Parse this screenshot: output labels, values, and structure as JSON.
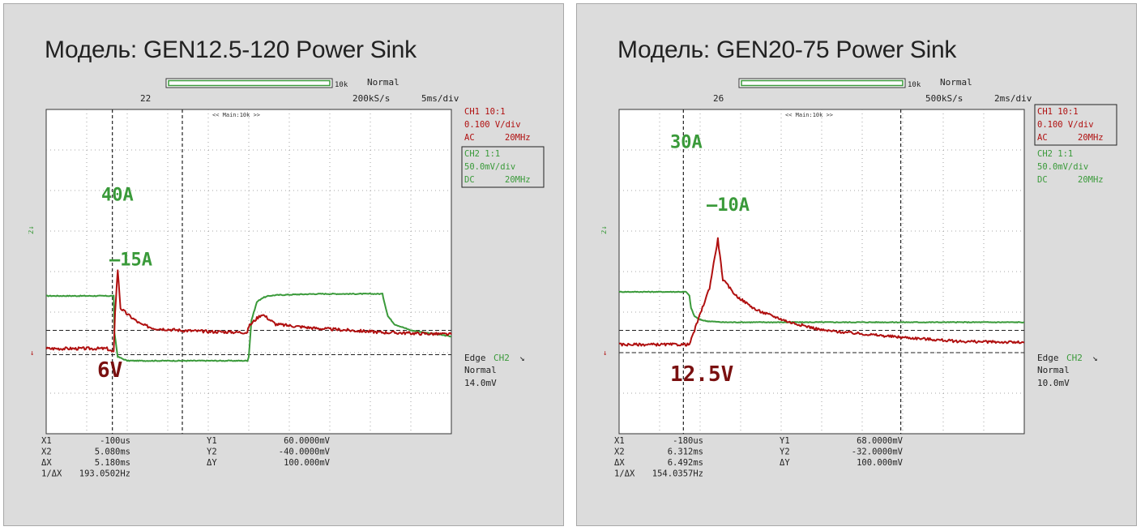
{
  "colors": {
    "ch1": "#b01010",
    "ch2": "#3a9a3a",
    "grid": "#8a8a8a",
    "screen": "#ffffff",
    "text": "#222222"
  },
  "panels": [
    {
      "title": "Модель: GEN12.5-120 Power Sink",
      "header": {
        "trigger_pos": "22",
        "record": "10k",
        "mode": "Normal",
        "sample_rate": "200kS/s",
        "timebase": "5ms/div",
        "main_label": "<< Main:10k >>"
      },
      "ch1": {
        "title": "CH1 10:1",
        "scale": "0.100 V/div",
        "coupling": "AC",
        "bw": "20MHz",
        "boxed": false
      },
      "ch2": {
        "title": "CH2 1:1",
        "scale": "50.0mV/div",
        "coupling": "DC",
        "bw": "20MHz",
        "boxed": true
      },
      "trigger": {
        "edge": "Edge",
        "source": "CH2",
        "slope": "↘",
        "mode": "Normal",
        "level": "14.0mV"
      },
      "cursors": [
        {
          "label": "X1",
          "value": "-100us",
          "ylabel": "Y1",
          "yvalue": "60.0000mV"
        },
        {
          "label": "X2",
          "value": "5.080ms",
          "ylabel": "Y2",
          "yvalue": "-40.0000mV"
        },
        {
          "label": "ΔX",
          "value": "5.180ms",
          "ylabel": "ΔY",
          "yvalue": "100.000mV"
        },
        {
          "label": "1/ΔX",
          "value": "193.0502Hz",
          "ylabel": "",
          "yvalue": ""
        }
      ],
      "annotations": {
        "current_high": "40A",
        "current_low": "–15A",
        "voltage": "6V"
      },
      "chart_data": {
        "type": "line",
        "title": "Модель: GEN12.5-120 Power Sink",
        "xlabel": "",
        "ylabel": "",
        "x_divisions": 10,
        "y_divisions": 8,
        "series": [
          {
            "name": "CH2",
            "x": [
              -5,
              0,
              0.05,
              0.3,
              1,
              3,
              6,
              9.9,
              10,
              10.2,
              10.6,
              11,
              11.5,
              12,
              15,
              19.9,
              20,
              20.3,
              20.8,
              22,
              25
            ],
            "y": [
              3.4,
              3.4,
              2.5,
              1.9,
              1.8,
              1.8,
              1.8,
              1.8,
              1.9,
              2.8,
              3.25,
              3.35,
              3.4,
              3.42,
              3.45,
              3.45,
              3.3,
              2.9,
              2.7,
              2.55,
              2.4
            ]
          },
          {
            "name": "CH1",
            "x": [
              -5,
              -0.5,
              0,
              0.1,
              0.3,
              0.5,
              1,
              2,
              3,
              5,
              7,
              9.9,
              10,
              10.3,
              10.6,
              11,
              12,
              15,
              20,
              25
            ],
            "y": [
              2.1,
              2.1,
              2.0,
              3.0,
              4.05,
              3.1,
              2.95,
              2.7,
              2.6,
              2.55,
              2.52,
              2.5,
              2.65,
              2.75,
              2.85,
              2.95,
              2.7,
              2.6,
              2.5,
              2.45
            ]
          }
        ]
      }
    },
    {
      "title": "Модель: GEN20-75 Power Sink",
      "header": {
        "trigger_pos": "26",
        "record": "10k",
        "mode": "Normal",
        "sample_rate": "500kS/s",
        "timebase": "2ms/div",
        "main_label": "<< Main:10k >>"
      },
      "ch1": {
        "title": "CH1 10:1",
        "scale": "0.100 V/div",
        "coupling": "AC",
        "bw": "20MHz",
        "boxed": true
      },
      "ch2": {
        "title": "CH2 1:1",
        "scale": "50.0mV/div",
        "coupling": "DC",
        "bw": "20MHz",
        "boxed": false
      },
      "trigger": {
        "edge": "Edge",
        "source": "CH2",
        "slope": "↘",
        "mode": "Normal",
        "level": "10.0mV"
      },
      "cursors": [
        {
          "label": "X1",
          "value": "-180us",
          "ylabel": "Y1",
          "yvalue": "68.0000mV"
        },
        {
          "label": "X2",
          "value": "6.312ms",
          "ylabel": "Y2",
          "yvalue": "-32.0000mV"
        },
        {
          "label": "ΔX",
          "value": "6.492ms",
          "ylabel": "ΔY",
          "yvalue": "100.000mV"
        },
        {
          "label": "1/ΔX",
          "value": "154.0357Hz",
          "ylabel": "",
          "yvalue": ""
        }
      ],
      "annotations": {
        "current_high": "30A",
        "current_low": "–10A",
        "voltage": "12.5V"
      },
      "chart_data": {
        "type": "line",
        "title": "Модель: GEN20-75 Power Sink",
        "xlabel": "",
        "ylabel": "",
        "x_divisions": 10,
        "y_divisions": 8,
        "series": [
          {
            "name": "CH2",
            "x": [
              -2.1,
              -0.1,
              0,
              0.05,
              0.15,
              0.3,
              0.5,
              1,
              2,
              5,
              8,
              10
            ],
            "y": [
              3.5,
              3.5,
              3.4,
              3.1,
              2.9,
              2.82,
              2.78,
              2.75,
              2.75,
              2.75,
              2.75,
              2.75
            ]
          },
          {
            "name": "CH1",
            "x": [
              -2.1,
              -0.2,
              0,
              0.3,
              0.6,
              0.85,
              1,
              1.4,
              2,
              3,
              4,
              6,
              8,
              10
            ],
            "y": [
              2.2,
              2.2,
              2.2,
              2.9,
              3.6,
              4.8,
              3.8,
              3.4,
              3.05,
              2.75,
              2.55,
              2.4,
              2.28,
              2.25
            ]
          }
        ]
      }
    }
  ]
}
